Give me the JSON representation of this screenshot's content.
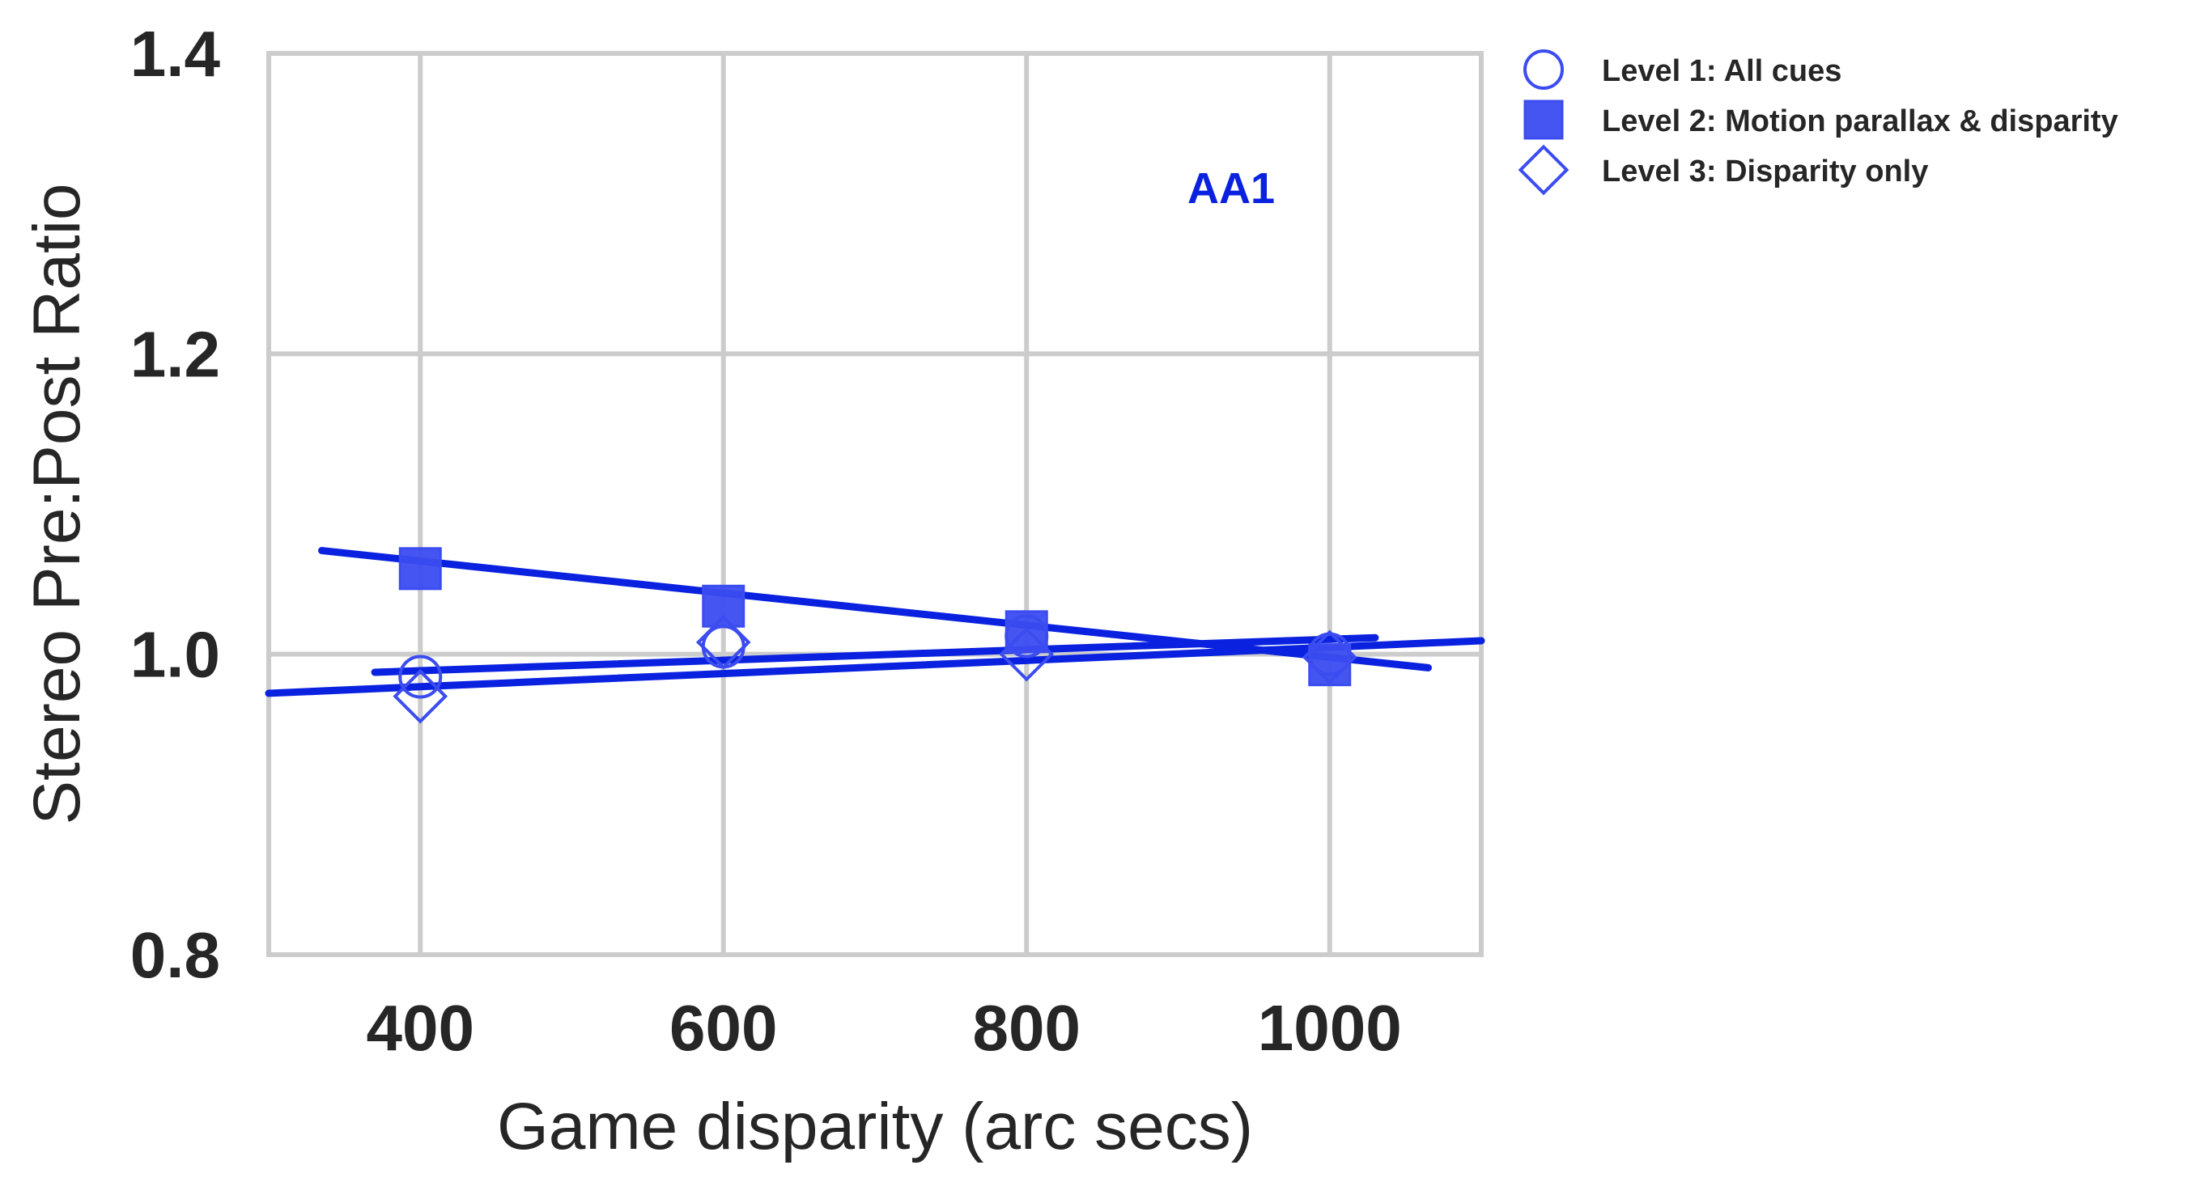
{
  "chart_data": {
    "type": "scatter",
    "title": "",
    "xlabel": "Game disparity (arc secs)",
    "ylabel": "Stereo Pre:Post Ratio",
    "xlim": [
      300,
      1100
    ],
    "ylim": [
      0.8,
      1.4
    ],
    "xticks": [
      400,
      600,
      800,
      1000
    ],
    "yticks": [
      0.8,
      1.0,
      1.2,
      1.4
    ],
    "xtick_labels": [
      "400",
      "600",
      "800",
      "1000"
    ],
    "ytick_labels": [
      "0.8",
      "1.0",
      "1.2",
      "1.4"
    ],
    "grid": true,
    "legend_placement": "outside top-right",
    "annotation": {
      "text": "AA1",
      "x": 935,
      "y": 1.31,
      "color": "#0a22e0"
    },
    "series": [
      {
        "name": "Level 1: All cues",
        "marker": "circle-open",
        "color": "#3b4cf0",
        "x": [
          400,
          600,
          800,
          1000
        ],
        "y": [
          0.985,
          1.005,
          1.012,
          1.0
        ],
        "fit": {
          "x_range": [
            370,
            1030
          ],
          "y_at": [
            0.988,
            1.011
          ]
        }
      },
      {
        "name": "Level 2: Motion parallax & disparity",
        "marker": "square-filled",
        "color": "#3b4cf0",
        "x": [
          400,
          600,
          800,
          1000
        ],
        "y": [
          1.057,
          1.032,
          1.015,
          0.993
        ],
        "fit": {
          "x_range": [
            335,
            1065
          ],
          "y_at": [
            1.069,
            0.991
          ]
        }
      },
      {
        "name": "Level 3: Disparity only",
        "marker": "diamond-open",
        "color": "#3b4cf0",
        "x": [
          400,
          600,
          800,
          1000
        ],
        "y": [
          0.972,
          1.008,
          1.0,
          0.998
        ],
        "fit": {
          "x_range": [
            300,
            1100
          ],
          "y_at": [
            0.974,
            1.009
          ]
        }
      }
    ],
    "fit_line_color": "#0a22e0"
  }
}
